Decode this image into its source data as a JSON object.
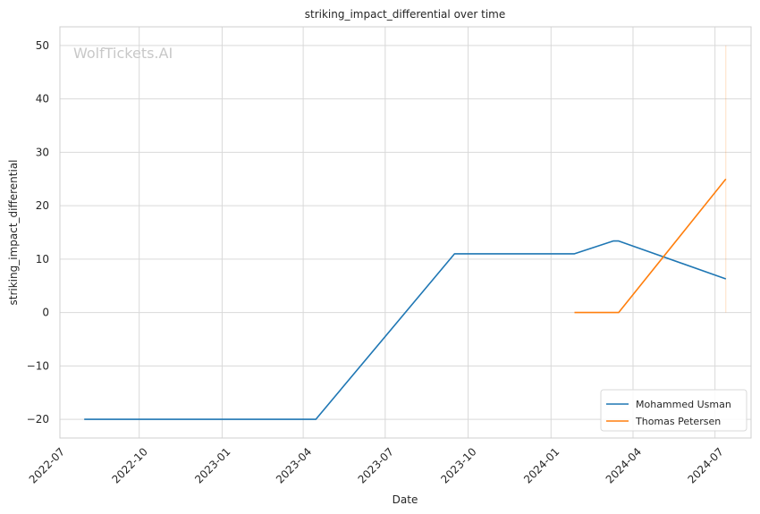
{
  "watermark": "WolfTickets.AI",
  "colors": {
    "series_1": "#1f77b4",
    "series_2": "#ff7f0e",
    "grid": "#d9d9d9",
    "frame": "#cfcfcf"
  },
  "chart_data": {
    "type": "line",
    "title": "striking_impact_differential over time",
    "xlabel": "Date",
    "ylabel": "striking_impact_differential",
    "x_type": "date",
    "xlim": [
      "2022-07-05",
      "2024-08-10"
    ],
    "ylim": [
      -23.5,
      53.5
    ],
    "grid": true,
    "legend_position": "bottom-right",
    "x_ticks": [
      {
        "date": "2022-07-01",
        "label": "2022-07"
      },
      {
        "date": "2022-10-01",
        "label": "2022-10"
      },
      {
        "date": "2023-01-01",
        "label": "2023-01"
      },
      {
        "date": "2023-04-01",
        "label": "2023-04"
      },
      {
        "date": "2023-07-01",
        "label": "2023-07"
      },
      {
        "date": "2023-10-01",
        "label": "2023-10"
      },
      {
        "date": "2024-01-01",
        "label": "2024-01"
      },
      {
        "date": "2024-04-01",
        "label": "2024-04"
      },
      {
        "date": "2024-07-01",
        "label": "2024-07"
      }
    ],
    "y_ticks": [
      {
        "value": -20,
        "label": "−20"
      },
      {
        "value": -10,
        "label": "−10"
      },
      {
        "value": 0,
        "label": "0"
      },
      {
        "value": 10,
        "label": "10"
      },
      {
        "value": 20,
        "label": "20"
      },
      {
        "value": 30,
        "label": "30"
      },
      {
        "value": 40,
        "label": "40"
      },
      {
        "value": 50,
        "label": "50"
      }
    ],
    "series": [
      {
        "name": "Mohammed Usman",
        "color": "#1f77b4",
        "points": [
          {
            "x": "2022-08-01",
            "y": -20
          },
          {
            "x": "2023-04-15",
            "y": -20
          },
          {
            "x": "2023-09-16",
            "y": 11
          },
          {
            "x": "2024-01-27",
            "y": 11
          },
          {
            "x": "2024-03-10",
            "y": 13.4
          },
          {
            "x": "2024-03-16",
            "y": 13.4
          },
          {
            "x": "2024-07-13",
            "y": 6.3
          }
        ]
      },
      {
        "name": "Thomas Petersen",
        "color": "#ff7f0e",
        "points": [
          {
            "x": "2024-01-27",
            "y": 0
          },
          {
            "x": "2024-03-16",
            "y": 0
          },
          {
            "x": "2024-07-13",
            "y": 25
          }
        ]
      }
    ],
    "faint_vertical_line": {
      "x": "2024-07-13",
      "y_from": 0,
      "y_to": 50,
      "color": "#ff7f0e"
    }
  }
}
